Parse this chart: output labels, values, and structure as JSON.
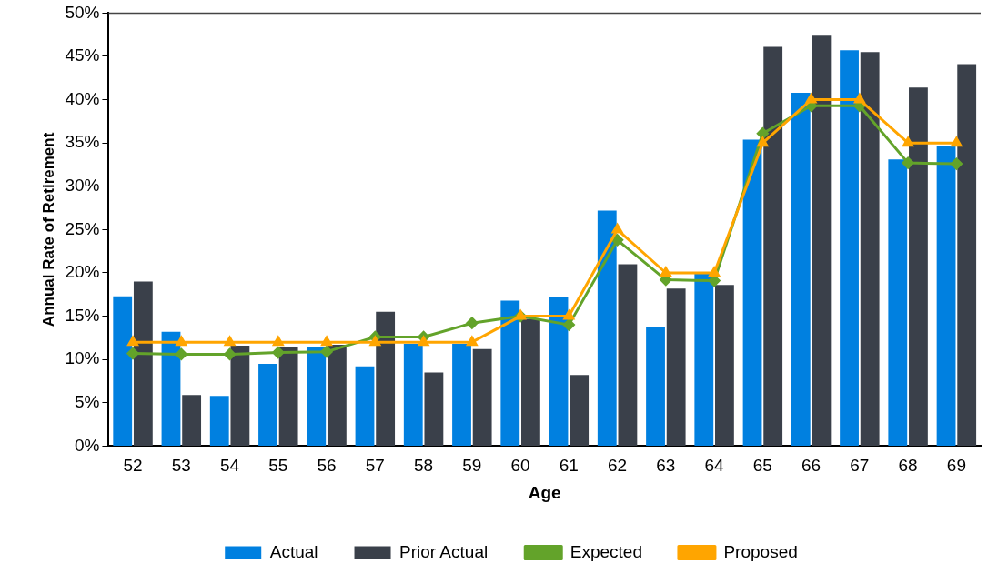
{
  "chart_data": {
    "type": "bar",
    "xlabel": "Age",
    "ylabel": "Annual Rate of Retirement",
    "categories": [
      "52",
      "53",
      "54",
      "55",
      "56",
      "57",
      "58",
      "59",
      "60",
      "61",
      "62",
      "63",
      "64",
      "65",
      "66",
      "67",
      "68",
      "69"
    ],
    "series": [
      {
        "name": "Actual",
        "color": "#0080e0",
        "values": [
          17.3,
          13.2,
          5.8,
          9.5,
          11.4,
          9.2,
          11.8,
          11.8,
          16.8,
          17.2,
          27.2,
          13.8,
          20.0,
          35.4,
          40.8,
          45.7,
          33.1,
          34.7
        ]
      },
      {
        "name": "Prior Actual",
        "color": "#3a404a",
        "values": [
          19.0,
          5.9,
          11.6,
          11.4,
          11.7,
          15.5,
          8.5,
          11.2,
          14.7,
          8.2,
          21.0,
          18.2,
          18.6,
          46.1,
          47.4,
          45.5,
          41.4,
          44.1
        ]
      },
      {
        "name": "Expected",
        "type": "line",
        "color": "#63a32a",
        "marker": "diamond",
        "values": [
          10.7,
          10.6,
          10.6,
          10.8,
          10.9,
          12.6,
          12.6,
          14.2,
          15.0,
          14.0,
          23.8,
          19.2,
          19.1,
          36.1,
          39.3,
          39.3,
          32.7,
          32.6
        ]
      },
      {
        "name": "Proposed",
        "type": "line",
        "color": "#ffa500",
        "marker": "triangle",
        "values": [
          12,
          12,
          12,
          12,
          12,
          12,
          12,
          12,
          15,
          15,
          25,
          20,
          20,
          35,
          40,
          40,
          35,
          35
        ]
      }
    ],
    "ylim": [
      0,
      50
    ],
    "yticks": [
      {
        "value": 0,
        "label": "0%"
      },
      {
        "value": 5,
        "label": "5%"
      },
      {
        "value": 10,
        "label": "10%"
      },
      {
        "value": 15,
        "label": "15%"
      },
      {
        "value": 20,
        "label": "20%"
      },
      {
        "value": 25,
        "label": "25%"
      },
      {
        "value": 30,
        "label": "30%"
      },
      {
        "value": 35,
        "label": "35%"
      },
      {
        "value": 40,
        "label": "40%"
      },
      {
        "value": 45,
        "label": "45%"
      },
      {
        "value": 50,
        "label": "50%"
      }
    ],
    "grid": false,
    "legend": "bottom",
    "line_style": "solid"
  }
}
